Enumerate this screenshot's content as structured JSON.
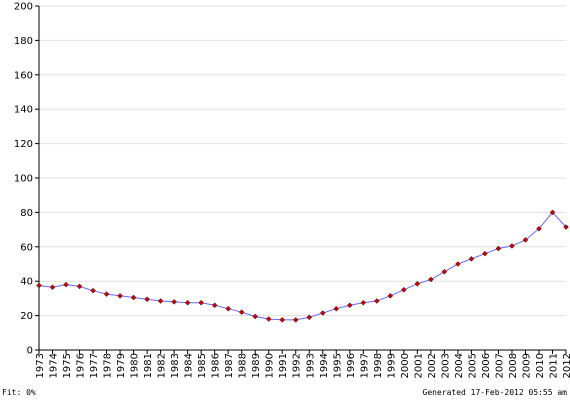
{
  "chart_data": {
    "type": "line",
    "x": [
      "1973",
      "1974",
      "1975",
      "1976",
      "1977",
      "1978",
      "1979",
      "1980",
      "1981",
      "1982",
      "1983",
      "1984",
      "1985",
      "1986",
      "1987",
      "1988",
      "1989",
      "1990",
      "1991",
      "1992",
      "1993",
      "1994",
      "1995",
      "1996",
      "1997",
      "1998",
      "1999",
      "2000",
      "2001",
      "2002",
      "2003",
      "2004",
      "2005",
      "2006",
      "2007",
      "2008",
      "2009",
      "2010",
      "2011",
      "2012"
    ],
    "values": [
      37.5,
      36.5,
      38.0,
      37.0,
      34.5,
      32.5,
      31.5,
      30.5,
      29.5,
      28.5,
      28.0,
      27.5,
      27.5,
      26.0,
      24.0,
      22.0,
      19.5,
      18.0,
      17.5,
      17.5,
      19.0,
      21.5,
      24.0,
      26.0,
      27.5,
      28.5,
      31.5,
      35.0,
      38.5,
      41.0,
      45.5,
      50.0,
      53.0,
      56.0,
      59.0,
      60.5,
      64.0,
      70.5,
      80.0,
      71.5
    ],
    "yticks": [
      0,
      20,
      40,
      60,
      80,
      100,
      120,
      140,
      160,
      180,
      200
    ],
    "ylim": [
      0,
      200
    ],
    "grid": true,
    "line_color": "#6666ff",
    "marker_color": "#cc0000"
  },
  "footer": {
    "fit": "Fit: 0%",
    "generated": "Generated 17-Feb-2012 05:55 am"
  }
}
